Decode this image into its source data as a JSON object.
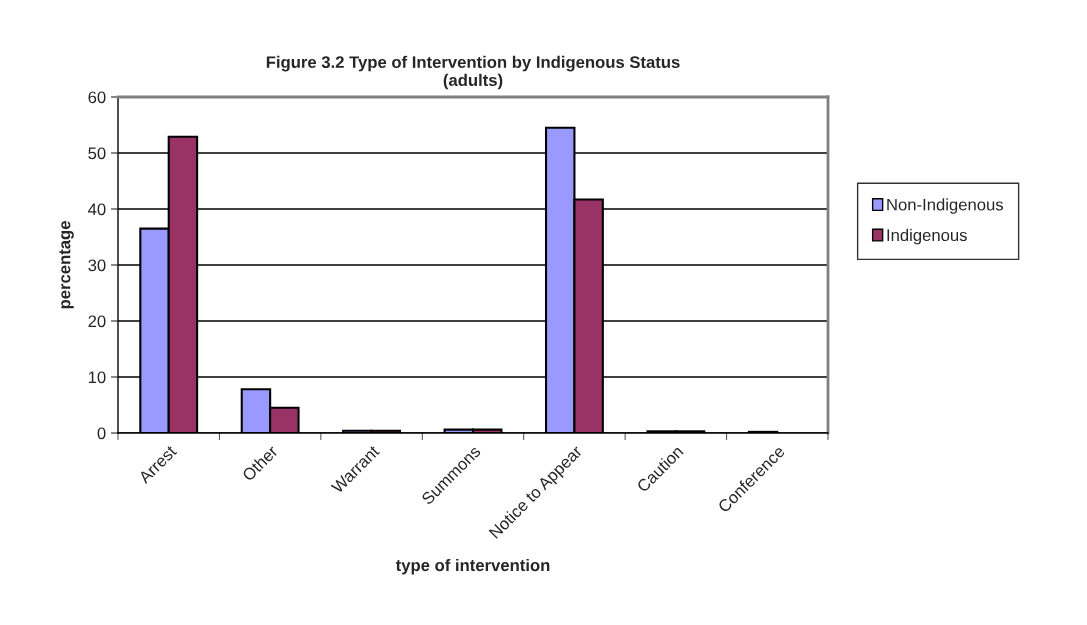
{
  "chart_data": {
    "type": "bar",
    "title": "Figure 3.2 Type of Intervention by Indigenous Status\n(adults)",
    "xlabel": "type of intervention",
    "ylabel": "percentage",
    "categories": [
      "Arrest",
      "Other",
      "Warrant",
      "Summons",
      "Notice to Appear",
      "Caution",
      "Conference"
    ],
    "series": [
      {
        "name": "Non-Indigenous",
        "color": "#9999ff",
        "values": [
          36.5,
          7.8,
          0.4,
          0.6,
          54.5,
          0.3,
          0.2
        ]
      },
      {
        "name": "Indigenous",
        "color": "#993366",
        "values": [
          52.9,
          4.5,
          0.4,
          0.6,
          41.7,
          0.3,
          null
        ]
      }
    ],
    "ylim": [
      0,
      60
    ],
    "yticks": [
      0,
      10,
      20,
      30,
      40,
      50,
      60
    ],
    "grid": "y",
    "legend": "right"
  }
}
